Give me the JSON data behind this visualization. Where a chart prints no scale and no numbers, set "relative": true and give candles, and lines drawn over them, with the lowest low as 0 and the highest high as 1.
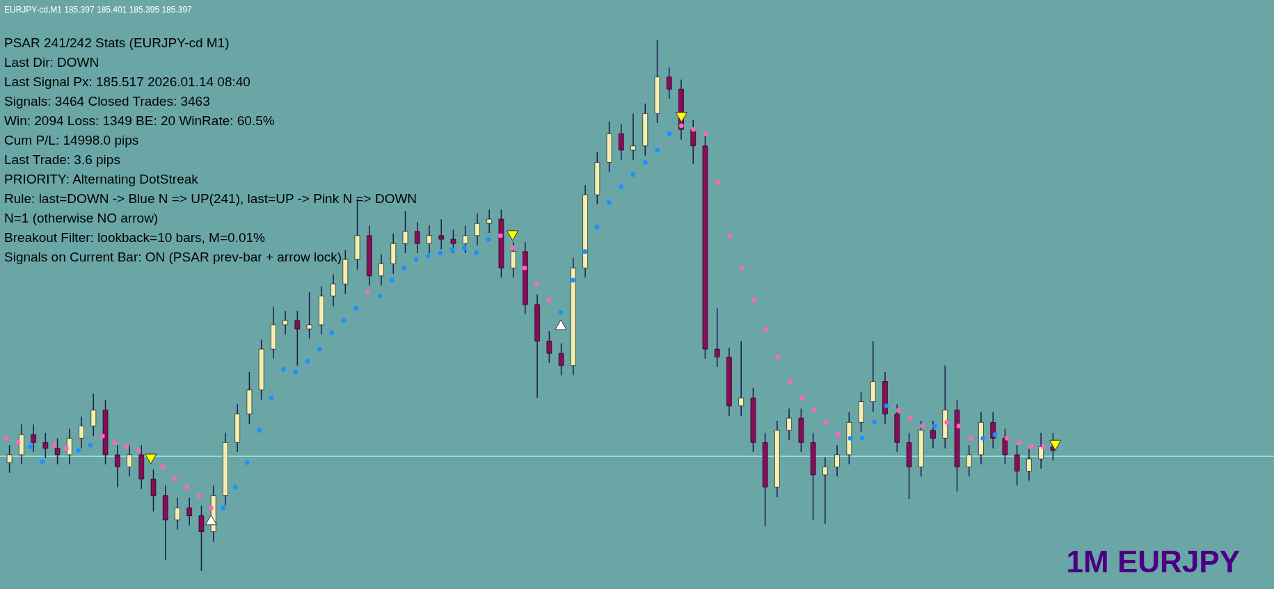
{
  "chart_data": {
    "type": "candlestick",
    "relative": true,
    "title": "PSAR 241/242 Stats (EURJPY-cd M1)",
    "annotations": [
      "Last Dir: DOWN",
      "Last Signal Px: 185.517  2026.01.14 08:40",
      "Signals: 3464  Closed Trades: 3463",
      "Win: 2094  Loss: 1349  BE: 20  WinRate: 60.5%",
      "Cum P/L: 14998.0 pips",
      "Last Trade: 3.6 pips",
      "PRIORITY: Alternating DotStreak",
      "Rule: last=DOWN -> Blue N => UP(241), last=UP -> Pink N => DOWN",
      "N=1  (otherwise NO arrow)",
      "Breakout Filter: lookback=10 bars, M=0.01%",
      "Signals on Current Bar: ON (PSAR prev-bar + arrow lock)",
      "EURJPY-cd,M1  185.397 185.401 185.395 185.397",
      "1M EURJPY"
    ],
    "categories": [
      null,
      null,
      null,
      null,
      null,
      null,
      null,
      null,
      null,
      null,
      null,
      null,
      null,
      null,
      null,
      null,
      null,
      null,
      null,
      null,
      null,
      null,
      null,
      null,
      null,
      null,
      null,
      null,
      null,
      null,
      null,
      null,
      null,
      null,
      null,
      null,
      null,
      null,
      null,
      null,
      null,
      null,
      null,
      null,
      null,
      null,
      null,
      null,
      null,
      null,
      null,
      null,
      null,
      null,
      null,
      null,
      null,
      null,
      null,
      null,
      null,
      null,
      null,
      null,
      null,
      null,
      null,
      null,
      null,
      null,
      null,
      null,
      null,
      null,
      null,
      null,
      null,
      null,
      null,
      null,
      null,
      null,
      null,
      null,
      null,
      null,
      null,
      null
    ],
    "ohlc": [
      [
        0.204,
        0.237,
        0.185,
        0.219
      ],
      [
        0.219,
        0.276,
        0.201,
        0.257
      ],
      [
        0.257,
        0.276,
        0.224,
        0.242
      ],
      [
        0.242,
        0.26,
        0.213,
        0.231
      ],
      [
        0.231,
        0.25,
        0.201,
        0.219
      ],
      [
        0.219,
        0.268,
        0.201,
        0.25
      ],
      [
        0.25,
        0.291,
        0.231,
        0.273
      ],
      [
        0.273,
        0.334,
        0.254,
        0.303
      ],
      [
        0.303,
        0.322,
        0.201,
        0.219
      ],
      [
        0.219,
        0.237,
        0.158,
        0.196
      ],
      [
        0.196,
        0.237,
        0.178,
        0.219
      ],
      [
        0.219,
        0.237,
        0.155,
        0.173
      ],
      [
        0.173,
        0.191,
        0.112,
        0.142
      ],
      [
        0.142,
        0.161,
        0.02,
        0.096
      ],
      [
        0.096,
        0.138,
        0.078,
        0.119
      ],
      [
        0.119,
        0.138,
        0.086,
        0.104
      ],
      [
        0.104,
        0.123,
        0.0,
        0.074
      ],
      [
        0.074,
        0.161,
        0.055,
        0.142
      ],
      [
        0.142,
        0.26,
        0.124,
        0.242
      ],
      [
        0.242,
        0.314,
        0.224,
        0.296
      ],
      [
        0.296,
        0.375,
        0.277,
        0.341
      ],
      [
        0.341,
        0.436,
        0.323,
        0.418
      ],
      [
        0.418,
        0.498,
        0.4,
        0.464
      ],
      [
        0.464,
        0.49,
        0.446,
        0.472
      ],
      [
        0.472,
        0.49,
        0.387,
        0.456
      ],
      [
        0.456,
        0.525,
        0.438,
        0.464
      ],
      [
        0.464,
        0.536,
        0.446,
        0.518
      ],
      [
        0.518,
        0.559,
        0.499,
        0.541
      ],
      [
        0.541,
        0.605,
        0.522,
        0.587
      ],
      [
        0.587,
        0.701,
        0.568,
        0.632
      ],
      [
        0.632,
        0.651,
        0.538,
        0.556
      ],
      [
        0.556,
        0.597,
        0.538,
        0.579
      ],
      [
        0.579,
        0.636,
        0.56,
        0.617
      ],
      [
        0.617,
        0.678,
        0.599,
        0.64
      ],
      [
        0.64,
        0.658,
        0.599,
        0.617
      ],
      [
        0.617,
        0.651,
        0.599,
        0.632
      ],
      [
        0.632,
        0.663,
        0.606,
        0.625
      ],
      [
        0.625,
        0.643,
        0.599,
        0.617
      ],
      [
        0.617,
        0.651,
        0.599,
        0.632
      ],
      [
        0.632,
        0.674,
        0.614,
        0.655
      ],
      [
        0.655,
        0.681,
        0.637,
        0.663
      ],
      [
        0.663,
        0.681,
        0.553,
        0.571
      ],
      [
        0.571,
        0.62,
        0.553,
        0.602
      ],
      [
        0.602,
        0.62,
        0.484,
        0.502
      ],
      [
        0.502,
        0.521,
        0.326,
        0.433
      ],
      [
        0.433,
        0.452,
        0.392,
        0.41
      ],
      [
        0.41,
        0.429,
        0.369,
        0.387
      ],
      [
        0.387,
        0.59,
        0.369,
        0.571
      ],
      [
        0.571,
        0.727,
        0.553,
        0.709
      ],
      [
        0.709,
        0.789,
        0.691,
        0.77
      ],
      [
        0.77,
        0.847,
        0.752,
        0.824
      ],
      [
        0.824,
        0.842,
        0.775,
        0.793
      ],
      [
        0.793,
        0.862,
        0.775,
        0.801
      ],
      [
        0.801,
        0.881,
        0.783,
        0.862
      ],
      [
        0.862,
        1.0,
        0.844,
        0.931
      ],
      [
        0.931,
        0.949,
        0.89,
        0.908
      ],
      [
        0.908,
        0.926,
        0.813,
        0.832
      ],
      [
        0.832,
        0.85,
        0.767,
        0.801
      ],
      [
        0.801,
        0.819,
        0.4,
        0.418
      ],
      [
        0.418,
        0.495,
        0.384,
        0.403
      ],
      [
        0.403,
        0.421,
        0.292,
        0.311
      ],
      [
        0.311,
        0.433,
        0.292,
        0.326
      ],
      [
        0.326,
        0.345,
        0.224,
        0.242
      ],
      [
        0.242,
        0.26,
        0.084,
        0.158
      ],
      [
        0.158,
        0.283,
        0.139,
        0.265
      ],
      [
        0.265,
        0.306,
        0.247,
        0.288
      ],
      [
        0.288,
        0.306,
        0.224,
        0.242
      ],
      [
        0.242,
        0.26,
        0.096,
        0.181
      ],
      [
        0.181,
        0.214,
        0.089,
        0.196
      ],
      [
        0.196,
        0.237,
        0.178,
        0.219
      ],
      [
        0.219,
        0.299,
        0.201,
        0.28
      ],
      [
        0.28,
        0.337,
        0.262,
        0.319
      ],
      [
        0.319,
        0.433,
        0.3,
        0.357
      ],
      [
        0.357,
        0.375,
        0.277,
        0.296
      ],
      [
        0.296,
        0.314,
        0.224,
        0.242
      ],
      [
        0.242,
        0.26,
        0.135,
        0.196
      ],
      [
        0.196,
        0.283,
        0.178,
        0.265
      ],
      [
        0.265,
        0.283,
        0.231,
        0.25
      ],
      [
        0.25,
        0.387,
        0.231,
        0.303
      ],
      [
        0.303,
        0.322,
        0.15,
        0.196
      ],
      [
        0.196,
        0.237,
        0.178,
        0.219
      ],
      [
        0.219,
        0.299,
        0.201,
        0.28
      ],
      [
        0.28,
        0.299,
        0.231,
        0.25
      ],
      [
        0.25,
        0.268,
        0.201,
        0.219
      ],
      [
        0.219,
        0.237,
        0.161,
        0.188
      ],
      [
        0.188,
        0.23,
        0.17,
        0.211
      ],
      [
        0.211,
        0.26,
        0.193,
        0.234
      ],
      [
        0.234,
        0.26,
        0.208,
        0.227
      ]
    ],
    "colors": [
      "#f4eeb0",
      "#f4eeb0",
      "#8b0a5a",
      "#8b0a5a",
      "#8b0a5a",
      "#f4eeb0",
      "#f4eeb0",
      "#f4eeb0",
      "#8b0a5a",
      "#8b0a5a",
      "#f4eeb0",
      "#8b0a5a",
      "#8b0a5a",
      "#8b0a5a",
      "#f4eeb0",
      "#8b0a5a",
      "#8b0a5a",
      "#f4eeb0",
      "#f4eeb0",
      "#f4eeb0",
      "#f4eeb0",
      "#f4eeb0",
      "#f4eeb0",
      "#f4eeb0",
      "#8b0a5a",
      "#f4eeb0",
      "#f4eeb0",
      "#f4eeb0",
      "#f4eeb0",
      "#f4eeb0",
      "#8b0a5a",
      "#f4eeb0",
      "#f4eeb0",
      "#f4eeb0",
      "#8b0a5a",
      "#f4eeb0",
      "#8b0a5a",
      "#8b0a5a",
      "#f4eeb0",
      "#f4eeb0",
      "#f4eeb0",
      "#8b0a5a",
      "#f4eeb0",
      "#8b0a5a",
      "#8b0a5a",
      "#8b0a5a",
      "#8b0a5a",
      "#f4eeb0",
      "#f4eeb0",
      "#f4eeb0",
      "#f4eeb0",
      "#8b0a5a",
      "#f4eeb0",
      "#f4eeb0",
      "#f4eeb0",
      "#8b0a5a",
      "#8b0a5a",
      "#8b0a5a",
      "#8b0a5a",
      "#8b0a5a",
      "#8b0a5a",
      "#f4eeb0",
      "#8b0a5a",
      "#8b0a5a",
      "#f4eeb0",
      "#f4eeb0",
      "#8b0a5a",
      "#8b0a5a",
      "#f4eeb0",
      "#f4eeb0",
      "#f4eeb0",
      "#f4eeb0",
      "#f4eeb0",
      "#8b0a5a",
      "#8b0a5a",
      "#8b0a5a",
      "#f4eeb0",
      "#8b0a5a",
      "#f4eeb0",
      "#8b0a5a",
      "#f4eeb0",
      "#f4eeb0",
      "#8b0a5a",
      "#8b0a5a",
      "#8b0a5a",
      "#f4eeb0",
      "#f4eeb0",
      "#8b0a5a"
    ],
    "series": [
      {
        "type": "scatter",
        "color": "#1e90ff",
        "marker": "circle",
        "values": [
          null,
          null,
          0.234,
          0.205,
          null,
          null,
          0.227,
          0.237,
          null,
          null,
          null,
          null,
          null,
          null,
          null,
          null,
          null,
          null,
          0.119,
          0.158,
          0.204,
          0.265,
          0.326,
          0.38,
          0.375,
          0.395,
          0.418,
          0.449,
          0.472,
          0.495,
          null,
          0.518,
          0.548,
          0.571,
          0.587,
          0.594,
          0.599,
          0.605,
          0.609,
          0.6,
          0.625,
          null,
          null,
          null,
          null,
          null,
          0.487,
          0.548,
          0.602,
          0.648,
          0.694,
          0.724,
          0.747,
          0.77,
          0.793,
          0.824,
          null,
          null,
          null,
          null,
          null,
          null,
          null,
          null,
          null,
          null,
          null,
          null,
          null,
          null,
          0.25,
          0.25,
          0.28,
          0.311,
          null,
          null,
          null,
          0.273,
          null,
          null,
          null,
          0.25,
          0.257,
          null,
          null,
          null,
          null,
          null
        ]
      },
      {
        "type": "scatter",
        "color": "#ff69b4",
        "marker": "circle",
        "values": [
          0.25,
          0.242,
          null,
          null,
          0.237,
          0.231,
          null,
          null,
          0.254,
          0.242,
          0.234,
          0.227,
          null,
          0.196,
          0.173,
          0.158,
          0.142,
          0.119,
          null,
          null,
          null,
          null,
          null,
          null,
          null,
          null,
          null,
          null,
          null,
          null,
          0.525,
          null,
          null,
          null,
          null,
          null,
          null,
          null,
          null,
          null,
          null,
          0.632,
          0.609,
          0.571,
          0.541,
          0.51,
          null,
          null,
          null,
          null,
          null,
          null,
          null,
          null,
          null,
          null,
          0.839,
          0.832,
          0.824,
          0.732,
          0.632,
          0.571,
          0.51,
          0.456,
          0.403,
          0.357,
          0.326,
          0.303,
          0.28,
          0.257,
          null,
          null,
          null,
          null,
          0.303,
          0.288,
          0.273,
          null,
          0.28,
          0.273,
          0.25,
          null,
          null,
          0.25,
          0.242,
          0.234,
          0.234,
          null
        ]
      },
      {
        "type": "scatter",
        "color": "#ffffff",
        "marker": "triangle",
        "values": [
          null,
          null,
          null,
          null,
          null,
          null,
          null,
          null,
          null,
          null,
          null,
          null,
          null,
          null,
          null,
          null,
          null,
          0.096,
          null,
          null,
          null,
          null,
          null,
          null,
          null,
          null,
          null,
          null,
          null,
          null,
          null,
          null,
          null,
          null,
          null,
          null,
          null,
          null,
          null,
          null,
          null,
          null,
          null,
          null,
          null,
          null,
          0.464,
          null,
          null,
          null,
          null,
          null,
          null,
          null,
          null,
          null,
          null,
          null,
          null,
          null,
          null,
          null,
          null,
          null,
          null,
          null,
          null,
          null,
          null,
          null,
          null,
          null,
          null,
          null,
          null,
          null,
          null,
          null,
          null,
          null,
          null,
          null,
          null,
          null,
          null,
          null,
          null,
          null
        ]
      },
      {
        "type": "scatter",
        "color": "#ffff00",
        "marker": "triangle",
        "values": [
          null,
          null,
          null,
          null,
          null,
          null,
          null,
          null,
          null,
          null,
          null,
          null,
          0.211,
          null,
          null,
          null,
          null,
          null,
          null,
          null,
          null,
          null,
          null,
          null,
          null,
          null,
          null,
          null,
          null,
          null,
          null,
          null,
          null,
          null,
          null,
          null,
          null,
          null,
          null,
          null,
          null,
          null,
          0.632,
          null,
          null,
          null,
          null,
          null,
          null,
          null,
          null,
          null,
          null,
          null,
          null,
          null,
          0.855,
          null,
          null,
          null,
          null,
          null,
          null,
          null,
          null,
          null,
          null,
          null,
          null,
          null,
          null,
          null,
          null,
          null,
          null,
          null,
          null,
          null,
          null,
          null,
          null,
          null,
          null,
          null,
          null,
          null,
          null,
          0.237
        ]
      }
    ],
    "ref_lines": [
      {
        "axis": "y",
        "value": 0.216,
        "label": null,
        "color": "#a8f0e0"
      }
    ]
  }
}
